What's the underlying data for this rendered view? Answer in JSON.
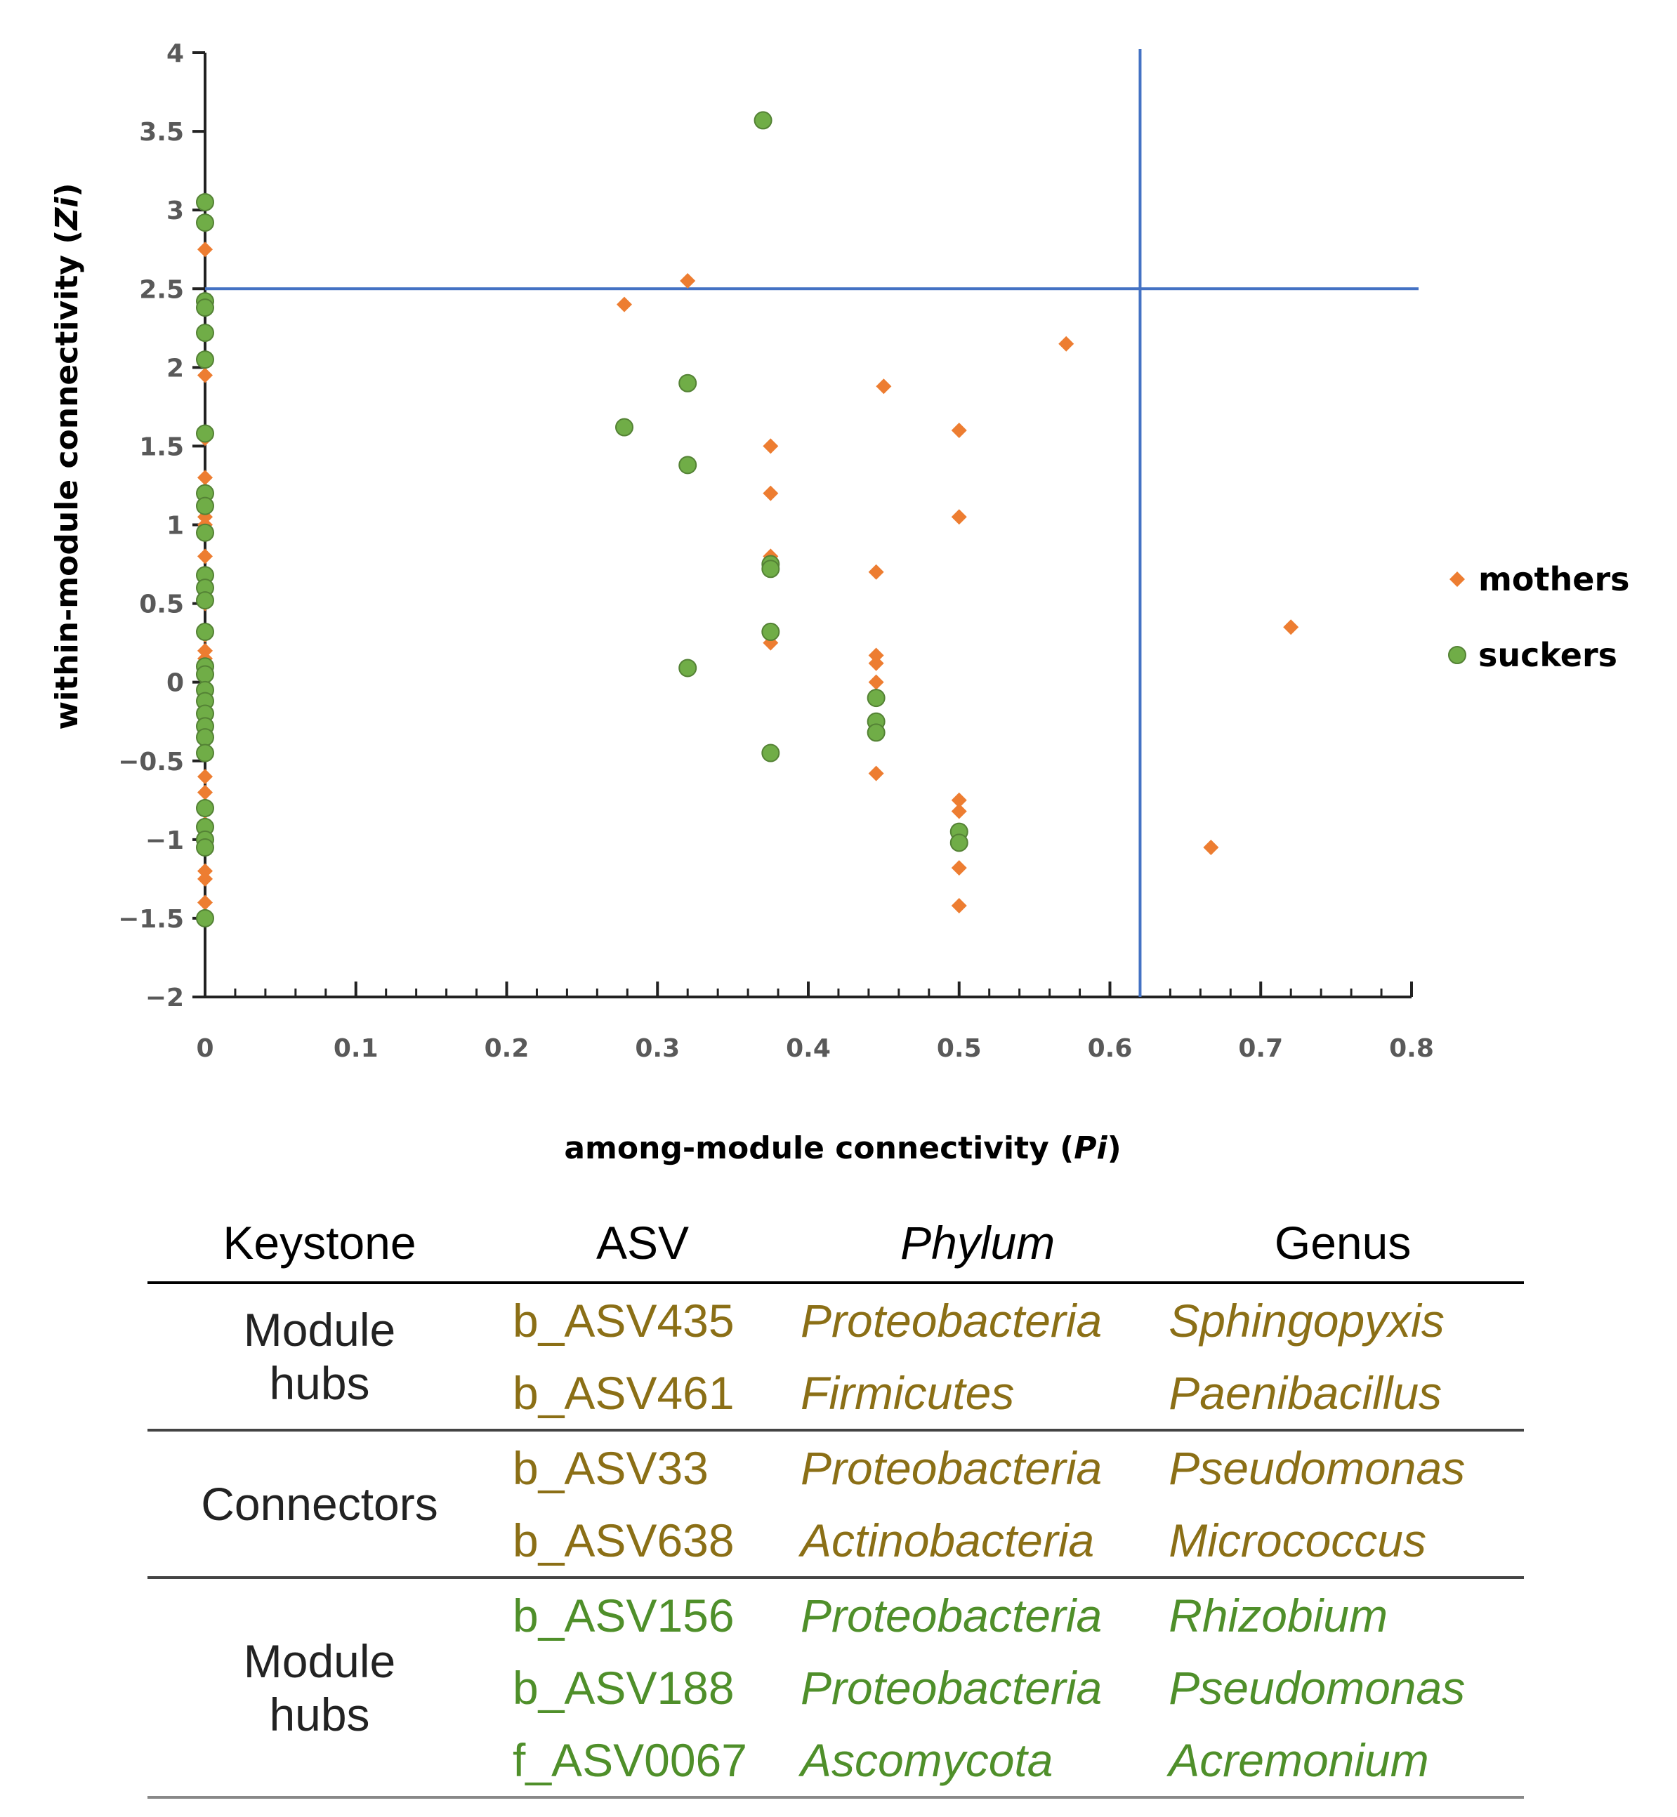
{
  "chart_data": {
    "type": "scatter",
    "title": "",
    "xlabel": "among-module connectivity (Pi)",
    "xlabel_parts": [
      "among-module connectivity (",
      "Pi",
      ")"
    ],
    "ylabel": "within-module connectivity (Zi)",
    "ylabel_parts": [
      "within-module connectivity (",
      "Zi",
      ")"
    ],
    "xlim": [
      0,
      0.8
    ],
    "ylim": [
      -2,
      4
    ],
    "xticks": [
      0,
      0.1,
      0.2,
      0.3,
      0.4,
      0.5,
      0.6,
      0.7,
      0.8
    ],
    "xtick_labels": [
      "0",
      "0.1",
      "0.2",
      "0.3",
      "0.4",
      "0.5",
      "0.6",
      "0.7",
      "0.8"
    ],
    "yticks": [
      4,
      3.5,
      3,
      2.5,
      2,
      1.5,
      1,
      0.5,
      0,
      -0.5,
      -1,
      -1.5,
      -2
    ],
    "ytick_labels": [
      "4",
      "3.5",
      "3",
      "2.5",
      "2",
      "1.5",
      "1",
      "0.5",
      "0",
      "−0.5",
      "−1",
      "−1.5",
      "−2"
    ],
    "threshold_lines": {
      "zi": 2.5,
      "pi": 0.62
    },
    "legend_position": "right",
    "series": [
      {
        "name": "mothers",
        "marker": "diamond",
        "color": "#ED7D31",
        "points": [
          [
            0,
            2.75
          ],
          [
            0,
            2.05
          ],
          [
            0,
            1.95
          ],
          [
            0,
            1.55
          ],
          [
            0,
            1.3
          ],
          [
            0,
            1.22
          ],
          [
            0,
            1.05
          ],
          [
            0,
            1.0
          ],
          [
            0,
            0.8
          ],
          [
            0,
            0.65
          ],
          [
            0,
            0.5
          ],
          [
            0,
            0.3
          ],
          [
            0,
            0.2
          ],
          [
            0,
            0.15
          ],
          [
            0,
            0.05
          ],
          [
            0,
            -0.05
          ],
          [
            0,
            -0.2
          ],
          [
            0,
            -0.35
          ],
          [
            0,
            -0.45
          ],
          [
            0,
            -0.6
          ],
          [
            0,
            -0.7
          ],
          [
            0,
            -0.8
          ],
          [
            0,
            -0.9
          ],
          [
            0,
            -1.05
          ],
          [
            0,
            -1.2
          ],
          [
            0,
            -1.25
          ],
          [
            0,
            -1.4
          ],
          [
            0,
            -1.5
          ],
          [
            0.278,
            2.4
          ],
          [
            0.32,
            2.55
          ],
          [
            0.375,
            1.5
          ],
          [
            0.375,
            1.2
          ],
          [
            0.375,
            0.8
          ],
          [
            0.375,
            0.75
          ],
          [
            0.375,
            0.25
          ],
          [
            0.445,
            0.7
          ],
          [
            0.445,
            0.17
          ],
          [
            0.445,
            0.12
          ],
          [
            0.445,
            0.0
          ],
          [
            0.445,
            -0.58
          ],
          [
            0.45,
            1.88
          ],
          [
            0.5,
            1.6
          ],
          [
            0.5,
            1.05
          ],
          [
            0.5,
            -0.75
          ],
          [
            0.5,
            -0.82
          ],
          [
            0.5,
            -1.18
          ],
          [
            0.5,
            -1.42
          ],
          [
            0.571,
            2.15
          ],
          [
            0.667,
            -1.05
          ],
          [
            0.72,
            0.35
          ]
        ]
      },
      {
        "name": "suckers",
        "marker": "circle",
        "color": "#70AD47",
        "points": [
          [
            0,
            3.05
          ],
          [
            0,
            2.92
          ],
          [
            0,
            2.42
          ],
          [
            0,
            2.38
          ],
          [
            0,
            2.22
          ],
          [
            0,
            2.05
          ],
          [
            0,
            1.58
          ],
          [
            0,
            1.2
          ],
          [
            0,
            1.12
          ],
          [
            0,
            0.95
          ],
          [
            0,
            0.68
          ],
          [
            0,
            0.6
          ],
          [
            0,
            0.52
          ],
          [
            0,
            0.32
          ],
          [
            0,
            0.1
          ],
          [
            0,
            0.05
          ],
          [
            0,
            -0.05
          ],
          [
            0,
            -0.12
          ],
          [
            0,
            -0.2
          ],
          [
            0,
            -0.28
          ],
          [
            0,
            -0.35
          ],
          [
            0,
            -0.45
          ],
          [
            0,
            -0.8
          ],
          [
            0,
            -0.92
          ],
          [
            0,
            -1.0
          ],
          [
            0,
            -1.05
          ],
          [
            0,
            -1.5
          ],
          [
            0.278,
            1.62
          ],
          [
            0.32,
            1.9
          ],
          [
            0.32,
            1.38
          ],
          [
            0.32,
            0.09
          ],
          [
            0.37,
            3.57
          ],
          [
            0.375,
            0.75
          ],
          [
            0.375,
            0.72
          ],
          [
            0.375,
            0.32
          ],
          [
            0.375,
            -0.45
          ],
          [
            0.445,
            -0.1
          ],
          [
            0.445,
            -0.25
          ],
          [
            0.445,
            -0.32
          ],
          [
            0.5,
            -0.95
          ],
          [
            0.5,
            -1.02
          ]
        ]
      }
    ]
  },
  "table": {
    "headers": [
      "Keystone",
      "ASV",
      "Phylum",
      "Genus"
    ],
    "groups": [
      {
        "category_lines": [
          "Module",
          "hubs"
        ],
        "color_role": "mothers",
        "rows": [
          {
            "asv": "b_ASV435",
            "phylum": "Proteobacteria",
            "genus": "Sphingopyxis"
          },
          {
            "asv": "b_ASV461",
            "phylum": "Firmicutes",
            "genus": "Paenibacillus"
          }
        ]
      },
      {
        "category_lines": [
          "Connectors"
        ],
        "color_role": "mothers",
        "rows": [
          {
            "asv": "b_ASV33",
            "phylum": "Proteobacteria",
            "genus": "Pseudomonas"
          },
          {
            "asv": "b_ASV638",
            "phylum": "Actinobacteria",
            "genus": "Micrococcus"
          }
        ]
      },
      {
        "category_lines": [
          "Module",
          "hubs"
        ],
        "color_role": "suckers",
        "rows": [
          {
            "asv": "b_ASV156",
            "phylum": "Proteobacteria",
            "genus": "Rhizobium"
          },
          {
            "asv": "b_ASV188",
            "phylum": "Proteobacteria",
            "genus": "Pseudomonas"
          },
          {
            "asv": "f_ASV0067",
            "phylum": "Ascomycota",
            "genus": "Acremonium"
          }
        ]
      }
    ]
  }
}
